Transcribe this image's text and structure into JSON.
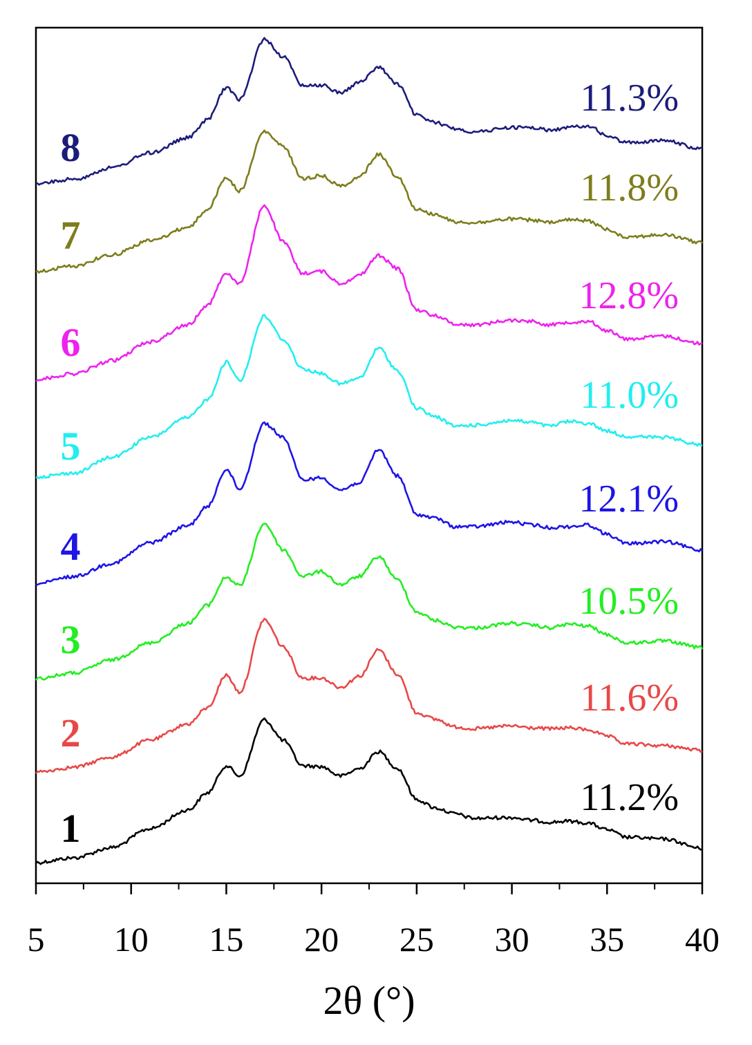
{
  "chart_data": {
    "type": "line",
    "title": "",
    "xlabel": "2θ (°)",
    "ylabel": "",
    "xlim": [
      5,
      40
    ],
    "xticks": [
      5,
      10,
      15,
      20,
      25,
      30,
      35,
      40
    ],
    "xtick_labels": [
      "5",
      "10",
      "15",
      "20",
      "25",
      "30",
      "35",
      "40"
    ],
    "y_ticks_shown": false,
    "grid": false,
    "legend": "none; each curve is labeled inline with its sample number at left and a percentage at right",
    "peak_positions_2theta": [
      15.0,
      17.0,
      18.0,
      20.0,
      23.0
    ],
    "x": [
      5,
      7,
      9,
      11,
      13,
      14,
      15,
      15.7,
      17,
      18,
      19,
      20,
      21,
      22,
      23,
      24,
      25,
      26,
      27,
      28,
      30,
      31,
      32,
      33,
      34,
      35,
      36,
      38,
      40
    ],
    "series": [
      {
        "name": "1",
        "label": "11.2%",
        "color": "#000000",
        "values": [
          0.0,
          0.05,
          0.16,
          0.36,
          0.56,
          0.74,
          1.03,
          0.92,
          1.52,
          1.3,
          1.03,
          1.02,
          0.92,
          1.0,
          1.18,
          1.0,
          0.67,
          0.58,
          0.52,
          0.47,
          0.48,
          0.45,
          0.43,
          0.44,
          0.42,
          0.35,
          0.27,
          0.25,
          0.15
        ]
      },
      {
        "name": "2",
        "label": "11.6%",
        "color": "#e84848",
        "values": [
          0.0,
          0.05,
          0.16,
          0.34,
          0.51,
          0.68,
          1.03,
          0.85,
          1.62,
          1.33,
          1.0,
          1.0,
          0.9,
          1.02,
          1.3,
          1.04,
          0.63,
          0.56,
          0.48,
          0.46,
          0.49,
          0.47,
          0.46,
          0.47,
          0.45,
          0.38,
          0.3,
          0.28,
          0.23
        ]
      },
      {
        "name": "3",
        "label": "10.5%",
        "color": "#22ee22",
        "values": [
          0.0,
          0.06,
          0.2,
          0.38,
          0.59,
          0.78,
          1.08,
          0.99,
          1.65,
          1.37,
          1.09,
          1.14,
          1.0,
          1.09,
          1.3,
          1.05,
          0.71,
          0.62,
          0.55,
          0.54,
          0.59,
          0.57,
          0.54,
          0.58,
          0.56,
          0.47,
          0.38,
          0.4,
          0.33
        ]
      },
      {
        "name": "4",
        "label": "12.1%",
        "color": "#1e14e6",
        "values": [
          0.0,
          0.08,
          0.22,
          0.44,
          0.62,
          0.82,
          1.22,
          1.01,
          1.71,
          1.56,
          1.11,
          1.13,
          1.0,
          1.08,
          1.43,
          1.15,
          0.74,
          0.7,
          0.61,
          0.61,
          0.66,
          0.63,
          0.6,
          0.61,
          0.63,
          0.53,
          0.43,
          0.45,
          0.36
        ]
      },
      {
        "name": "5",
        "label": "11.0%",
        "color": "#22eef0",
        "values": [
          0.0,
          0.04,
          0.21,
          0.42,
          0.63,
          0.82,
          1.22,
          1.03,
          1.71,
          1.46,
          1.15,
          1.1,
          0.99,
          1.05,
          1.37,
          1.13,
          0.73,
          0.64,
          0.54,
          0.55,
          0.6,
          0.58,
          0.54,
          0.59,
          0.57,
          0.49,
          0.43,
          0.42,
          0.34
        ]
      },
      {
        "name": "6",
        "label": "12.8%",
        "color": "#ee22ee",
        "values": [
          0.0,
          0.06,
          0.2,
          0.4,
          0.58,
          0.79,
          1.13,
          1.02,
          1.85,
          1.46,
          1.13,
          1.15,
          1.02,
          1.11,
          1.32,
          1.18,
          0.74,
          0.68,
          0.59,
          0.58,
          0.63,
          0.62,
          0.58,
          0.61,
          0.62,
          0.52,
          0.43,
          0.46,
          0.38
        ]
      },
      {
        "name": "7",
        "label": "11.8%",
        "color": "#7d7d1c",
        "values": [
          0.0,
          0.06,
          0.18,
          0.33,
          0.47,
          0.66,
          1.0,
          0.86,
          1.49,
          1.33,
          0.99,
          1.02,
          0.91,
          1.01,
          1.25,
          1.01,
          0.66,
          0.61,
          0.53,
          0.52,
          0.56,
          0.55,
          0.52,
          0.55,
          0.54,
          0.45,
          0.37,
          0.39,
          0.31
        ]
      },
      {
        "name": "8",
        "label": "11.3%",
        "color": "#1c1c7a",
        "values": [
          0.0,
          0.05,
          0.17,
          0.33,
          0.49,
          0.68,
          1.02,
          0.9,
          1.54,
          1.35,
          1.05,
          1.05,
          0.97,
          1.08,
          1.24,
          1.06,
          0.73,
          0.65,
          0.59,
          0.55,
          0.6,
          0.6,
          0.57,
          0.6,
          0.62,
          0.51,
          0.44,
          0.46,
          0.37
        ]
      }
    ]
  }
}
